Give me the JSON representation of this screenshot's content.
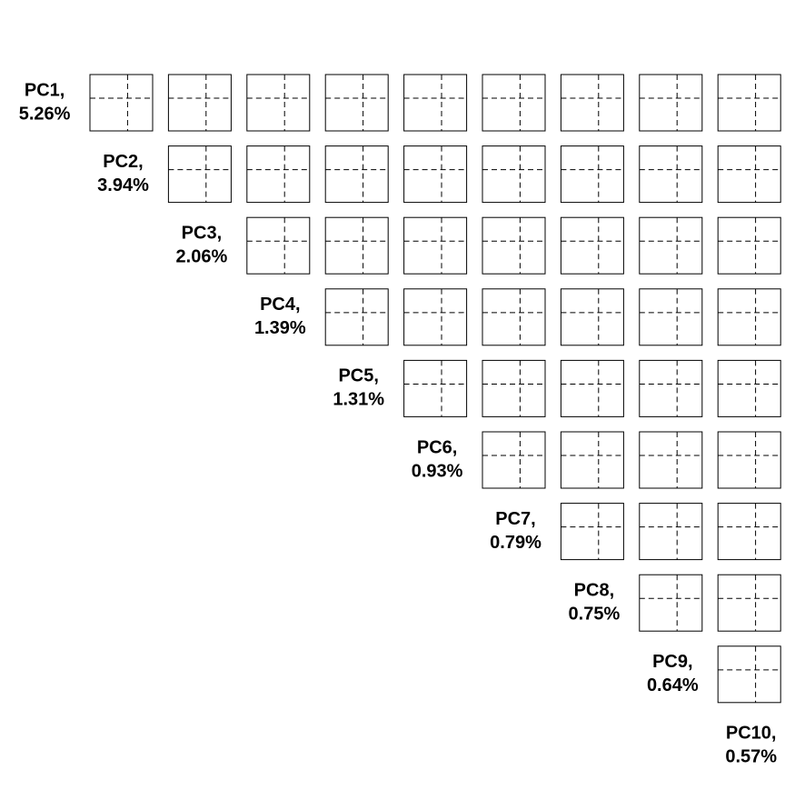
{
  "chart_data": {
    "type": "pairs",
    "labels": [
      [
        "PC1,",
        "5.26%"
      ],
      [
        "PC2,",
        "3.94%"
      ],
      [
        "PC3,",
        "2.06%"
      ],
      [
        "PC4,",
        "1.39%"
      ],
      [
        "PC5,",
        "1.31%"
      ],
      [
        "PC6,",
        "0.93%"
      ],
      [
        "PC7,",
        "0.79%"
      ],
      [
        "PC8,",
        "0.75%"
      ],
      [
        "PC9,",
        "0.64%"
      ],
      [
        "PC10,",
        "0.57%"
      ]
    ]
  }
}
